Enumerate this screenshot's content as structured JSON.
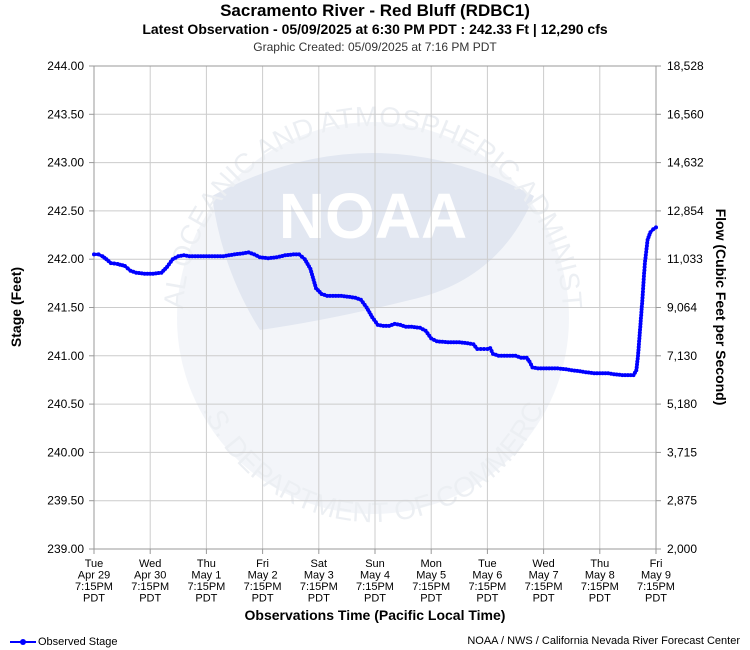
{
  "chart_data": {
    "type": "line",
    "title": "Sacramento River - Red Bluff (RDBC1)",
    "subtitle": "Latest Observation - 05/09/2025 at 6:30 PM PDT : 242.33 Ft | 12,290 cfs",
    "created": "Graphic Created: 05/09/2025 at 7:16 PM PDT",
    "xlabel": "Observations Time (Pacific Local Time)",
    "ylabel": "Stage (Feet)",
    "y2label": "Flow (Cubic Feet per Second)",
    "ylim": [
      239.0,
      244.0
    ],
    "xlim": [
      0,
      10
    ],
    "grid": true,
    "x_ticks": [
      [
        "Tue",
        "Apr 29",
        "7:15PM",
        "PDT"
      ],
      [
        "Wed",
        "Apr 30",
        "7:15PM",
        "PDT"
      ],
      [
        "Thu",
        "May 1",
        "7:15PM",
        "PDT"
      ],
      [
        "Fri",
        "May 2",
        "7:15PM",
        "PDT"
      ],
      [
        "Sat",
        "May 3",
        "7:15PM",
        "PDT"
      ],
      [
        "Sun",
        "May 4",
        "7:15PM",
        "PDT"
      ],
      [
        "Mon",
        "May 5",
        "7:15PM",
        "PDT"
      ],
      [
        "Tue",
        "May 6",
        "7:15PM",
        "PDT"
      ],
      [
        "Wed",
        "May 7",
        "7:15PM",
        "PDT"
      ],
      [
        "Thu",
        "May 8",
        "7:15PM",
        "PDT"
      ],
      [
        "Fri",
        "May 9",
        "7:15PM",
        "PDT"
      ]
    ],
    "y_ticks": [
      "239.00",
      "239.50",
      "240.00",
      "240.50",
      "241.00",
      "241.50",
      "242.00",
      "242.50",
      "243.00",
      "243.50",
      "244.00"
    ],
    "y2_ticks": [
      "2,000",
      "2,875",
      "3,715",
      "5,180",
      "7,130",
      "9,064",
      "11,033",
      "12,854",
      "14,632",
      "16,560",
      "18,528"
    ],
    "series": [
      {
        "name": "Observed Stage",
        "color": "#0000ff",
        "points": [
          [
            0.0,
            242.05
          ],
          [
            0.08,
            242.05
          ],
          [
            0.15,
            242.03
          ],
          [
            0.22,
            242.0
          ],
          [
            0.3,
            241.96
          ],
          [
            0.42,
            241.95
          ],
          [
            0.55,
            241.93
          ],
          [
            0.65,
            241.88
          ],
          [
            0.75,
            241.86
          ],
          [
            0.9,
            241.85
          ],
          [
            1.05,
            241.85
          ],
          [
            1.2,
            241.86
          ],
          [
            1.3,
            241.92
          ],
          [
            1.4,
            242.0
          ],
          [
            1.5,
            242.03
          ],
          [
            1.6,
            242.04
          ],
          [
            1.7,
            242.03
          ],
          [
            1.9,
            242.03
          ],
          [
            2.1,
            242.03
          ],
          [
            2.3,
            242.03
          ],
          [
            2.5,
            242.05
          ],
          [
            2.65,
            242.06
          ],
          [
            2.75,
            242.07
          ],
          [
            2.85,
            242.05
          ],
          [
            2.95,
            242.02
          ],
          [
            3.1,
            242.01
          ],
          [
            3.25,
            242.02
          ],
          [
            3.4,
            242.04
          ],
          [
            3.55,
            242.05
          ],
          [
            3.65,
            242.05
          ],
          [
            3.75,
            242.0
          ],
          [
            3.85,
            241.9
          ],
          [
            3.95,
            241.7
          ],
          [
            4.05,
            241.64
          ],
          [
            4.15,
            241.62
          ],
          [
            4.4,
            241.62
          ],
          [
            4.55,
            241.61
          ],
          [
            4.65,
            241.6
          ],
          [
            4.75,
            241.58
          ],
          [
            4.85,
            241.5
          ],
          [
            4.95,
            241.4
          ],
          [
            5.05,
            241.32
          ],
          [
            5.15,
            241.31
          ],
          [
            5.25,
            241.31
          ],
          [
            5.35,
            241.33
          ],
          [
            5.45,
            241.32
          ],
          [
            5.55,
            241.3
          ],
          [
            5.65,
            241.3
          ],
          [
            5.8,
            241.29
          ],
          [
            5.9,
            241.26
          ],
          [
            6.0,
            241.18
          ],
          [
            6.1,
            241.15
          ],
          [
            6.3,
            241.14
          ],
          [
            6.5,
            241.14
          ],
          [
            6.65,
            241.13
          ],
          [
            6.75,
            241.12
          ],
          [
            6.82,
            241.07
          ],
          [
            7.0,
            241.07
          ],
          [
            7.05,
            241.08
          ],
          [
            7.1,
            241.02
          ],
          [
            7.2,
            241.0
          ],
          [
            7.4,
            241.0
          ],
          [
            7.5,
            241.0
          ],
          [
            7.55,
            240.99
          ],
          [
            7.6,
            240.98
          ],
          [
            7.7,
            240.98
          ],
          [
            7.75,
            240.94
          ],
          [
            7.8,
            240.88
          ],
          [
            7.9,
            240.87
          ],
          [
            8.1,
            240.87
          ],
          [
            8.25,
            240.87
          ],
          [
            8.4,
            240.86
          ],
          [
            8.5,
            240.85
          ],
          [
            8.65,
            240.84
          ],
          [
            8.75,
            240.83
          ],
          [
            8.9,
            240.82
          ],
          [
            9.0,
            240.82
          ],
          [
            9.15,
            240.82
          ],
          [
            9.25,
            240.81
          ],
          [
            9.4,
            240.8
          ],
          [
            9.5,
            240.8
          ],
          [
            9.6,
            240.8
          ],
          [
            9.65,
            240.85
          ],
          [
            9.68,
            241.0
          ],
          [
            9.72,
            241.3
          ],
          [
            9.76,
            241.6
          ],
          [
            9.8,
            241.95
          ],
          [
            9.85,
            242.2
          ],
          [
            9.9,
            242.28
          ],
          [
            9.95,
            242.31
          ],
          [
            10.0,
            242.33
          ]
        ]
      }
    ]
  },
  "legend": {
    "observed_label": "Observed Stage"
  },
  "credit": "NOAA / NWS / California Nevada River Forecast Center",
  "watermark": {
    "logo_text": "NOAA",
    "ring_top": "NATIONAL OCEANIC AND ATMOSPHERIC ADMINISTRATION",
    "ring_bottom": "U.S. DEPARTMENT OF COMMERCE"
  }
}
